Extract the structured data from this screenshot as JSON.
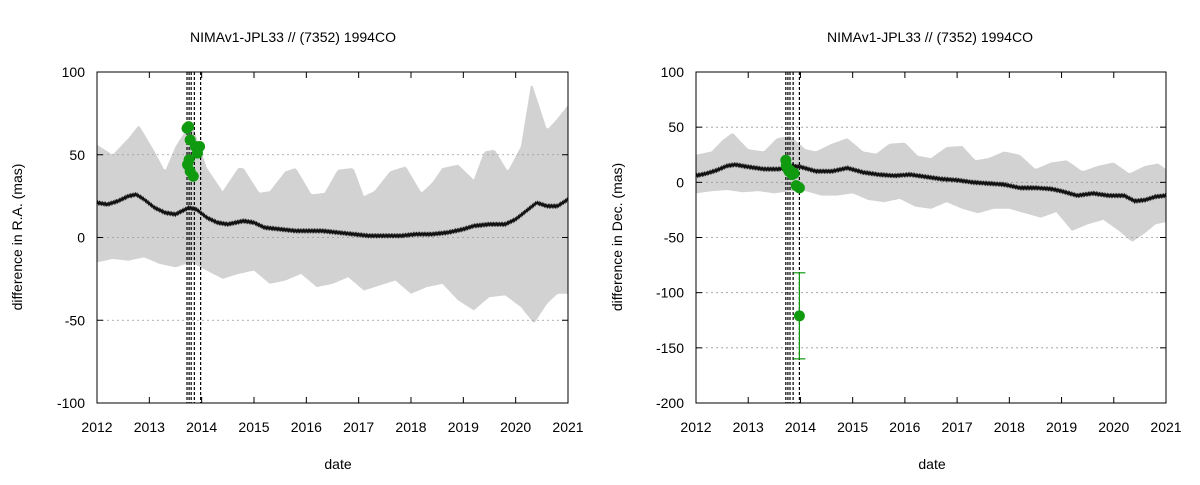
{
  "chart_data": [
    {
      "type": "line",
      "title": "NIMAv1-JPL33 // (7352) 1994CO",
      "xlabel": "date",
      "ylabel": "difference in R.A. (mas)",
      "xlim": [
        2012,
        2021
      ],
      "ylim": [
        -100,
        100
      ],
      "xticks": [
        "2012",
        "2013",
        "2014",
        "2015",
        "2016",
        "2017",
        "2018",
        "2019",
        "2020",
        "2021"
      ],
      "yticks": [
        "-100",
        "-50",
        "0",
        "50",
        "100"
      ],
      "grid": "horizontal-dotted",
      "vertical_markers": [
        2013.72,
        2013.76,
        2013.8,
        2013.86,
        2013.98
      ],
      "envelope_upper": {
        "x": [
          2012,
          2012.3,
          2012.6,
          2012.8,
          2013.1,
          2013.3,
          2013.5,
          2013.8,
          2014.1,
          2014.4,
          2014.7,
          2014.8,
          2015.1,
          2015.3,
          2015.6,
          2015.8,
          2016.1,
          2016.35,
          2016.6,
          2016.9,
          2017.1,
          2017.3,
          2017.6,
          2017.9,
          2018.2,
          2018.4,
          2018.6,
          2018.9,
          2019.2,
          2019.4,
          2019.6,
          2019.85,
          2020.1,
          2020.3,
          2020.6,
          2020.8,
          2021
        ],
        "values": [
          56,
          50,
          60,
          68,
          52,
          40,
          55,
          70,
          42,
          28,
          42,
          42,
          27,
          28,
          40,
          42,
          26,
          27,
          41,
          42,
          25,
          28,
          40,
          43,
          27,
          33,
          42,
          44,
          35,
          52,
          53,
          40,
          55,
          94,
          65,
          72,
          80
        ]
      },
      "envelope_lower": {
        "x": [
          2012,
          2012.3,
          2012.6,
          2012.9,
          2013.2,
          2013.5,
          2013.8,
          2014.1,
          2014.4,
          2014.7,
          2015.0,
          2015.3,
          2015.6,
          2015.9,
          2016.2,
          2016.5,
          2016.8,
          2017.1,
          2017.4,
          2017.7,
          2018.0,
          2018.3,
          2018.6,
          2018.9,
          2019.2,
          2019.5,
          2019.8,
          2020.1,
          2020.35,
          2020.6,
          2020.8,
          2021
        ],
        "values": [
          -15,
          -13,
          -14,
          -12,
          -16,
          -18,
          -15,
          -20,
          -25,
          -22,
          -20,
          -28,
          -26,
          -22,
          -30,
          -28,
          -24,
          -32,
          -29,
          -26,
          -34,
          -30,
          -28,
          -38,
          -44,
          -36,
          -35,
          -42,
          -52,
          -40,
          -34,
          -34
        ]
      },
      "series": [
        {
          "name": "difference",
          "x": [
            2012,
            2012.2,
            2012.4,
            2012.6,
            2012.75,
            2012.9,
            2013.1,
            2013.3,
            2013.5,
            2013.75,
            2013.9,
            2014.1,
            2014.3,
            2014.5,
            2014.8,
            2015.0,
            2015.2,
            2015.5,
            2015.8,
            2016.0,
            2016.3,
            2016.6,
            2016.9,
            2017.2,
            2017.5,
            2017.8,
            2018.1,
            2018.4,
            2018.7,
            2019.0,
            2019.2,
            2019.5,
            2019.8,
            2020.0,
            2020.2,
            2020.4,
            2020.6,
            2020.8,
            2021
          ],
          "values": [
            21,
            20,
            22,
            25,
            26,
            23,
            18,
            15,
            14,
            18,
            17,
            12,
            9,
            8,
            10,
            9,
            6,
            5,
            4,
            4,
            4,
            3,
            2,
            1,
            1,
            1,
            2,
            2,
            3,
            5,
            7,
            8,
            8,
            11,
            16,
            21,
            19,
            19,
            23
          ]
        },
        {
          "name": "observations",
          "kind": "points",
          "x": [
            2013.72,
            2013.75,
            2013.78,
            2013.76,
            2013.73,
            2013.78,
            2013.84,
            2013.92,
            2013.96,
            2013.88
          ],
          "values": [
            66,
            67,
            59,
            47,
            44,
            40,
            37,
            51,
            55,
            55
          ]
        }
      ]
    },
    {
      "type": "line",
      "title": "NIMAv1-JPL33 // (7352) 1994CO",
      "xlabel": "date",
      "ylabel": "difference in Dec. (mas)",
      "xlim": [
        2012,
        2021
      ],
      "ylim": [
        -200,
        100
      ],
      "xticks": [
        "2012",
        "2013",
        "2014",
        "2015",
        "2016",
        "2017",
        "2018",
        "2019",
        "2020",
        "2021"
      ],
      "yticks": [
        "-200",
        "-150",
        "-100",
        "-50",
        "0",
        "50",
        "100"
      ],
      "grid": "horizontal-dotted",
      "vertical_markers": [
        2013.72,
        2013.76,
        2013.8,
        2013.86,
        2013.98
      ],
      "envelope_upper": {
        "x": [
          2012,
          2012.3,
          2012.5,
          2012.7,
          2013.0,
          2013.3,
          2013.55,
          2013.8,
          2014.1,
          2014.3,
          2014.6,
          2014.9,
          2015.2,
          2015.45,
          2015.7,
          2016.0,
          2016.25,
          2016.5,
          2016.8,
          2017.1,
          2017.35,
          2017.6,
          2017.9,
          2018.2,
          2018.5,
          2018.8,
          2019.1,
          2019.4,
          2019.7,
          2020.0,
          2020.3,
          2020.6,
          2020.85,
          2021
        ],
        "values": [
          25,
          28,
          38,
          45,
          30,
          28,
          40,
          42,
          30,
          28,
          35,
          40,
          28,
          26,
          35,
          36,
          24,
          22,
          32,
          33,
          20,
          22,
          28,
          25,
          12,
          18,
          20,
          10,
          15,
          18,
          8,
          15,
          17,
          12
        ]
      },
      "envelope_lower": {
        "x": [
          2012,
          2012.3,
          2012.6,
          2012.9,
          2013.2,
          2013.5,
          2013.8,
          2014.1,
          2014.4,
          2014.7,
          2015.0,
          2015.3,
          2015.6,
          2015.9,
          2016.2,
          2016.5,
          2016.8,
          2017.1,
          2017.4,
          2017.7,
          2018.0,
          2018.3,
          2018.6,
          2018.9,
          2019.2,
          2019.5,
          2019.8,
          2020.1,
          2020.35,
          2020.6,
          2020.8,
          2021
        ],
        "values": [
          -10,
          -8,
          -7,
          -9,
          -8,
          -10,
          -8,
          -8,
          -12,
          -12,
          -10,
          -16,
          -18,
          -15,
          -22,
          -24,
          -18,
          -24,
          -28,
          -24,
          -24,
          -28,
          -32,
          -27,
          -44,
          -38,
          -34,
          -44,
          -54,
          -46,
          -38,
          -36
        ]
      },
      "series": [
        {
          "name": "difference",
          "x": [
            2012,
            2012.2,
            2012.4,
            2012.6,
            2012.75,
            2013.0,
            2013.3,
            2013.6,
            2013.8,
            2014.0,
            2014.3,
            2014.6,
            2014.9,
            2015.2,
            2015.5,
            2015.8,
            2016.1,
            2016.4,
            2016.7,
            2017.0,
            2017.3,
            2017.6,
            2017.9,
            2018.2,
            2018.5,
            2018.8,
            2019.0,
            2019.3,
            2019.6,
            2019.9,
            2020.2,
            2020.4,
            2020.6,
            2020.8,
            2021
          ],
          "values": [
            6,
            8,
            11,
            15,
            16,
            14,
            12,
            12,
            15,
            14,
            10,
            10,
            13,
            9,
            7,
            6,
            7,
            5,
            3,
            2,
            0,
            -1,
            -2,
            -5,
            -5,
            -6,
            -8,
            -12,
            -10,
            -12,
            -12,
            -17,
            -16,
            -13,
            -12
          ]
        },
        {
          "name": "observations",
          "kind": "points",
          "x": [
            2013.72,
            2013.73,
            2013.76,
            2013.78,
            2013.8,
            2013.84,
            2013.88,
            2013.92,
            2013.98
          ],
          "values": [
            20,
            15,
            12,
            10,
            11,
            7,
            8,
            -3,
            -5
          ]
        },
        {
          "name": "outlier",
          "kind": "errorbar",
          "x": [
            2013.98
          ],
          "values": [
            -121
          ],
          "err_low": [
            -160
          ],
          "err_high": [
            -82
          ]
        }
      ]
    }
  ]
}
